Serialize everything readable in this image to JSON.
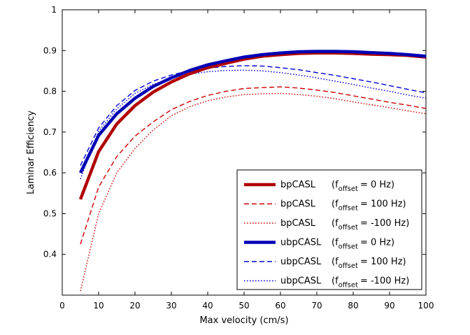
{
  "chart_data": {
    "type": "line",
    "title": "",
    "xlabel": "Max velocity (cm/s)",
    "ylabel": "Laminar Efficiency",
    "xlim": [
      0,
      100
    ],
    "ylim": [
      0.3,
      1.0
    ],
    "xticks": [
      "0",
      "10",
      "20",
      "30",
      "40",
      "50",
      "60",
      "70",
      "80",
      "90",
      "100"
    ],
    "yticks": [
      "0.4",
      "0.5",
      "0.6",
      "0.7",
      "0.8",
      "0.9",
      "1"
    ],
    "grid": false,
    "legend_position": "bottom-right",
    "x": [
      5,
      10,
      15,
      20,
      25,
      30,
      35,
      40,
      45,
      50,
      55,
      60,
      65,
      70,
      75,
      80,
      85,
      90,
      95,
      100
    ],
    "series": [
      {
        "name": "bpCASL",
        "offset_label": "= 0 Hz",
        "color": "#b00000",
        "style": "thick",
        "values": [
          0.535,
          0.652,
          0.72,
          0.765,
          0.798,
          0.823,
          0.843,
          0.858,
          0.869,
          0.879,
          0.886,
          0.89,
          0.893,
          0.894,
          0.894,
          0.893,
          0.891,
          0.89,
          0.888,
          0.884
        ]
      },
      {
        "name": "bpCASL",
        "offset_label": "= 100 Hz",
        "color": "#cc0000",
        "style": "dashed",
        "values": [
          0.425,
          0.565,
          0.64,
          0.69,
          0.725,
          0.755,
          0.775,
          0.79,
          0.8,
          0.807,
          0.809,
          0.811,
          0.808,
          0.803,
          0.797,
          0.789,
          0.781,
          0.773,
          0.766,
          0.758
        ]
      },
      {
        "name": "bpCASL",
        "offset_label": "= -100 Hz",
        "color": "#cc0000",
        "style": "dotted",
        "values": [
          0.31,
          0.5,
          0.6,
          0.66,
          0.705,
          0.74,
          0.762,
          0.777,
          0.786,
          0.792,
          0.794,
          0.795,
          0.792,
          0.788,
          0.782,
          0.774,
          0.767,
          0.76,
          0.752,
          0.745
        ]
      },
      {
        "name": "ubpCASL",
        "offset_label": "= 0 Hz",
        "color": "#0000b4",
        "style": "thick",
        "values": [
          0.6,
          0.692,
          0.745,
          0.783,
          0.812,
          0.833,
          0.851,
          0.865,
          0.875,
          0.884,
          0.89,
          0.894,
          0.897,
          0.898,
          0.898,
          0.897,
          0.895,
          0.893,
          0.89,
          0.886
        ]
      },
      {
        "name": "ubpCASL",
        "offset_label": "= 100 Hz",
        "color": "#0000dd",
        "style": "dashed",
        "values": [
          0.618,
          0.71,
          0.765,
          0.802,
          0.825,
          0.84,
          0.851,
          0.857,
          0.861,
          0.863,
          0.862,
          0.858,
          0.853,
          0.846,
          0.839,
          0.831,
          0.823,
          0.814,
          0.805,
          0.796
        ]
      },
      {
        "name": "ubpCASL",
        "offset_label": "= -100 Hz",
        "color": "#0000dd",
        "style": "dotted",
        "values": [
          0.585,
          0.702,
          0.757,
          0.795,
          0.817,
          0.832,
          0.842,
          0.848,
          0.851,
          0.852,
          0.85,
          0.846,
          0.84,
          0.833,
          0.825,
          0.817,
          0.808,
          0.8,
          0.791,
          0.783
        ]
      }
    ],
    "legend_label_prefix": "(f",
    "legend_label_sub": "offset",
    "legend_label_suffix": ")"
  }
}
